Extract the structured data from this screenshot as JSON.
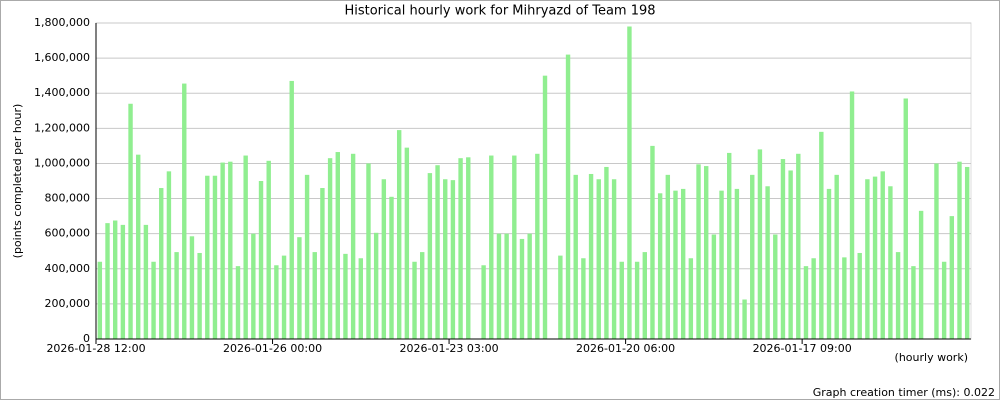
{
  "chart_data": {
    "type": "bar",
    "title": "Historical hourly work for Mihryazd of Team 198",
    "y_label": "(points completed per hour)",
    "x_label": "(hourly work)",
    "footer": "Graph creation timer (ms): 0.022",
    "color": "#90ee90",
    "grid": true,
    "ylim": [
      0,
      1800000
    ],
    "yticks": [
      0,
      {
        "value": 200000,
        "label": "200,000"
      },
      {
        "value": 400000,
        "label": "400,000"
      },
      {
        "value": 600000,
        "label": "600,000"
      },
      {
        "value": 800000,
        "label": "800,000"
      },
      {
        "value": 1000000,
        "label": "1,000,000"
      },
      {
        "value": 1200000,
        "label": "1,200,000"
      },
      {
        "value": 1400000,
        "label": "1,400,000"
      },
      {
        "value": 1600000,
        "label": "1,600,000"
      },
      {
        "value": 1800000,
        "label": "1,800,000"
      }
    ],
    "categories": [
      "2026-01-28 12:00",
      null,
      null,
      null,
      null,
      null,
      null,
      null,
      null,
      null,
      null,
      null,
      null,
      null,
      null,
      null,
      null,
      null,
      null,
      null,
      null,
      null,
      null,
      "2026-01-26 00:00",
      null,
      null,
      null,
      null,
      null,
      null,
      null,
      null,
      null,
      null,
      null,
      null,
      null,
      null,
      null,
      null,
      null,
      null,
      null,
      null,
      null,
      null,
      "2026-01-23 03:00",
      null,
      null,
      null,
      null,
      null,
      null,
      null,
      null,
      null,
      null,
      null,
      null,
      null,
      null,
      null,
      null,
      null,
      null,
      null,
      null,
      null,
      null,
      "2026-01-20 06:00",
      null,
      null,
      null,
      null,
      null,
      null,
      null,
      null,
      null,
      null,
      null,
      null,
      null,
      null,
      null,
      null,
      null,
      null,
      null,
      null,
      null,
      null,
      "2026-01-17 09:00",
      null,
      null,
      null,
      null,
      null,
      null,
      null,
      null,
      null,
      null,
      null,
      null,
      null,
      null,
      null,
      null,
      null,
      null,
      null,
      null,
      null
    ],
    "values": [
      440000,
      660000,
      675000,
      650000,
      1340000,
      1050000,
      650000,
      440000,
      860000,
      955000,
      495000,
      1455000,
      585000,
      490000,
      930000,
      930000,
      1005000,
      1010000,
      415000,
      1045000,
      600000,
      900000,
      1015000,
      420000,
      475000,
      1470000,
      580000,
      935000,
      495000,
      860000,
      1030000,
      1065000,
      485000,
      1055000,
      460000,
      1000000,
      605000,
      910000,
      810000,
      1190000,
      1090000,
      440000,
      495000,
      945000,
      990000,
      910000,
      905000,
      1030000,
      1035000,
      null,
      420000,
      1045000,
      600000,
      600000,
      1045000,
      570000,
      600000,
      1055000,
      1500000,
      null,
      475000,
      1620000,
      935000,
      460000,
      940000,
      910000,
      980000,
      910000,
      440000,
      1780000,
      440000,
      495000,
      1100000,
      830000,
      935000,
      845000,
      855000,
      460000,
      995000,
      985000,
      595000,
      845000,
      1060000,
      855000,
      225000,
      935000,
      1080000,
      870000,
      595000,
      1025000,
      960000,
      1055000,
      415000,
      460000,
      1180000,
      855000,
      935000,
      465000,
      1410000,
      490000,
      910000,
      925000,
      955000,
      870000,
      495000,
      1370000,
      415000,
      730000,
      null,
      1000000,
      440000,
      700000,
      1010000,
      980000
    ]
  }
}
